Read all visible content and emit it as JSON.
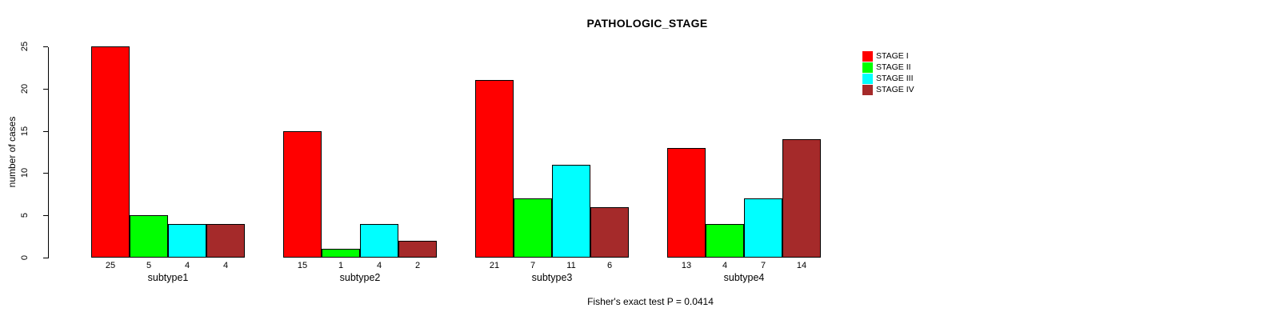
{
  "chart_data": {
    "type": "bar",
    "title": "PATHOLOGIC_STAGE",
    "ylabel": "number of cases",
    "xlabel": "",
    "categories": [
      "subtype1",
      "subtype2",
      "subtype3",
      "subtype4"
    ],
    "series": [
      {
        "name": "STAGE I",
        "color": "#FF0000",
        "values": [
          25,
          15,
          21,
          13
        ]
      },
      {
        "name": "STAGE II",
        "color": "#00FF00",
        "values": [
          5,
          1,
          7,
          4
        ]
      },
      {
        "name": "STAGE III",
        "color": "#00FFFF",
        "values": [
          4,
          4,
          11,
          7
        ]
      },
      {
        "name": "STAGE IV",
        "color": "#A52A2A",
        "values": [
          4,
          2,
          6,
          14
        ]
      }
    ],
    "yticks": [
      0,
      5,
      10,
      15,
      20,
      25
    ],
    "ylim": [
      0,
      25
    ],
    "grid": false,
    "bar_value_labels_shown": true,
    "legend_position": "top-right",
    "bar_border_color": "#000000",
    "footnote": "Fisher's exact test P = 0.0414"
  }
}
